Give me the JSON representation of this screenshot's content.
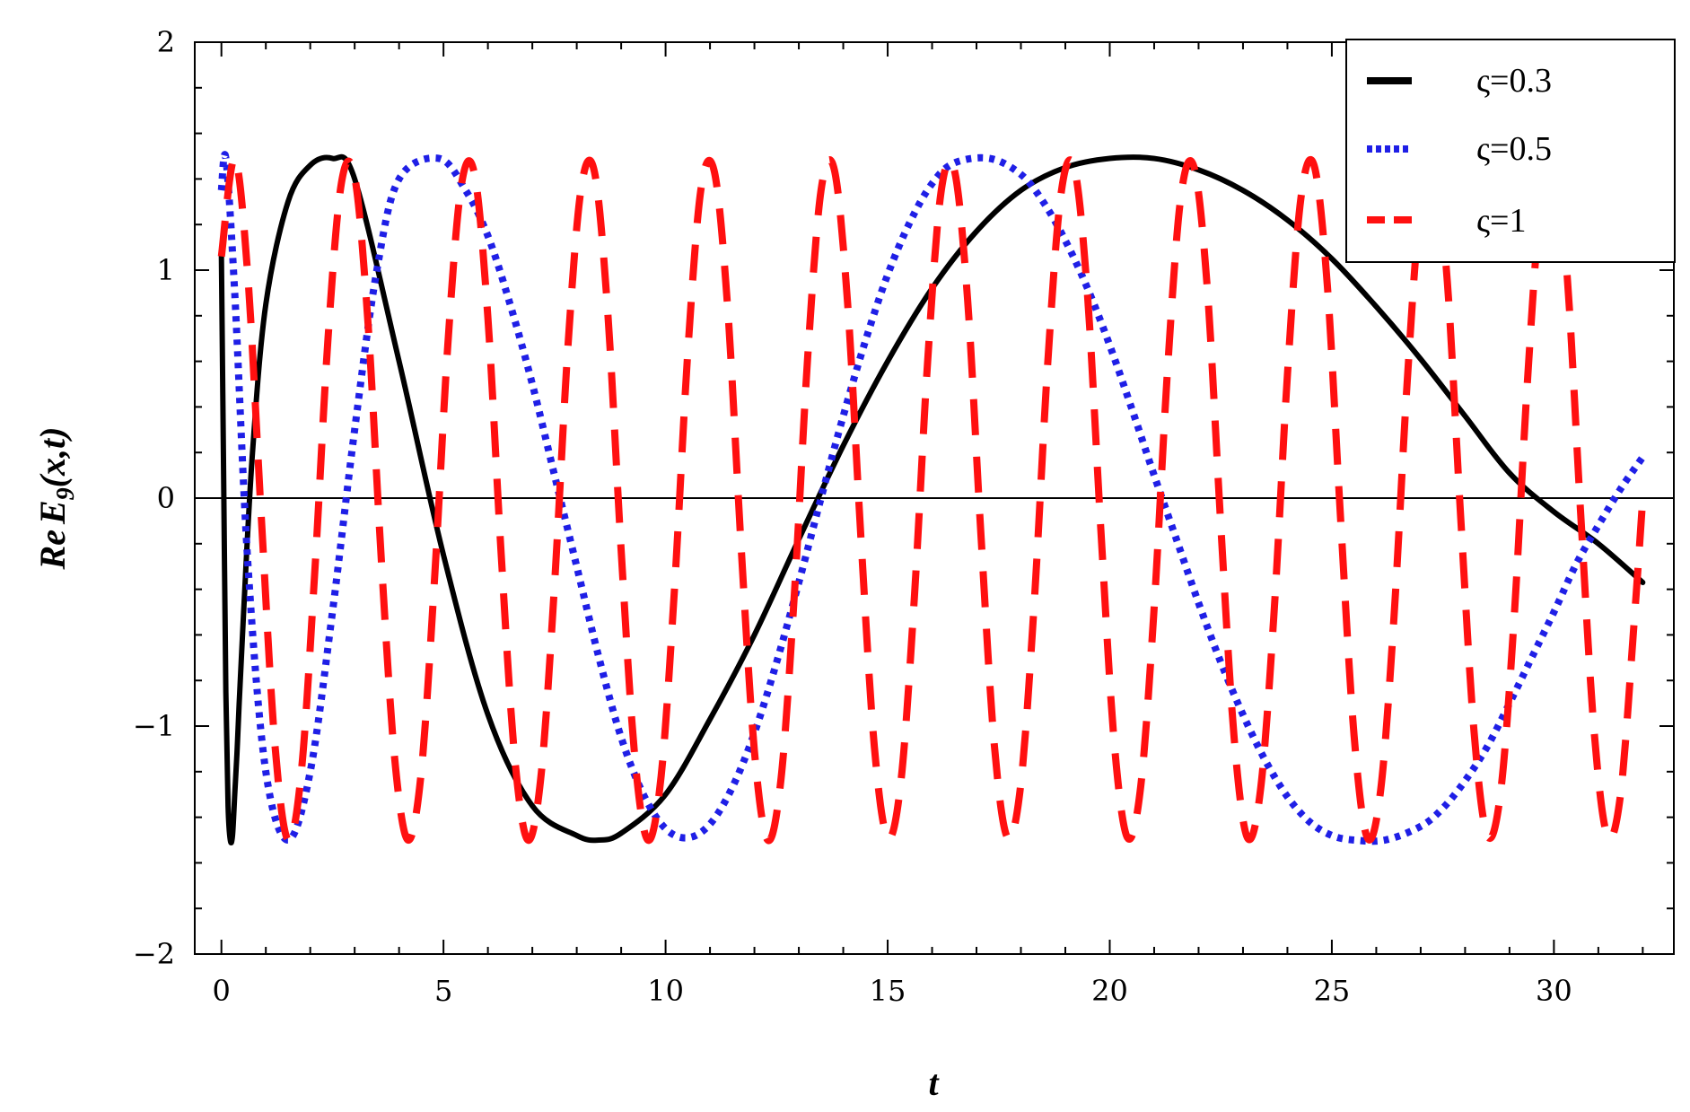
{
  "chart_data": {
    "type": "line",
    "title": "",
    "xlabel": "t",
    "ylabel_parts": {
      "re": "Re",
      "e": "E",
      "sub": "9",
      "args": "(x,t)"
    },
    "xlim": [
      -0.6,
      32.7
    ],
    "ylim": [
      -2,
      2
    ],
    "x_ticks": [
      0,
      5,
      10,
      15,
      20,
      25,
      30
    ],
    "y_ticks": [
      2,
      1,
      0,
      -1,
      -2
    ],
    "x_tick_labels": [
      "0",
      "5",
      "10",
      "15",
      "20",
      "25",
      "30"
    ],
    "y_tick_labels": [
      "2",
      "1",
      "0",
      "−1",
      "−2"
    ],
    "x_minor_step": 1,
    "y_minor_step": 0.2,
    "zero_line": true,
    "grid": false,
    "legend_position": "top-right",
    "series": [
      {
        "name": "ς=0.3",
        "color": "#000000",
        "style": "solid",
        "x": [
          0.0,
          0.05,
          0.1,
          0.15,
          0.2,
          0.25,
          0.3,
          0.35,
          0.4,
          0.5,
          0.7,
          1.0,
          1.5,
          2.0,
          2.5,
          3.0,
          4.0,
          5.0,
          6.0,
          7.0,
          8.0,
          8.5,
          9.0,
          10.0,
          11.0,
          12.0,
          13.0,
          14.0,
          15.0,
          16.0,
          17.0,
          18.0,
          19.0,
          20.0,
          21.0,
          22.0,
          23.0,
          24.0,
          25.0,
          26.0,
          27.0,
          28.0,
          29.0,
          30.0,
          31.0,
          32.0
        ],
        "y": [
          1.06,
          0.1,
          -0.85,
          -1.35,
          -1.5,
          -1.48,
          -1.3,
          -1.12,
          -0.9,
          -0.5,
          0.2,
          0.85,
          1.3,
          1.46,
          1.49,
          1.4,
          0.6,
          -0.25,
          -0.95,
          -1.35,
          -1.48,
          -1.5,
          -1.47,
          -1.3,
          -0.97,
          -0.6,
          -0.18,
          0.23,
          0.6,
          0.92,
          1.17,
          1.35,
          1.45,
          1.49,
          1.49,
          1.44,
          1.35,
          1.22,
          1.05,
          0.84,
          0.61,
          0.36,
          0.11,
          -0.06,
          -0.2,
          -0.37
        ]
      },
      {
        "name": "ς=0.5",
        "color": "#1f1fe6",
        "style": "dotted",
        "x": [
          0.0,
          0.1,
          0.3,
          0.6,
          1.0,
          1.5,
          2.0,
          2.5,
          3.0,
          3.5,
          4.0,
          4.9,
          5.5,
          6.0,
          6.5,
          7.0,
          7.5,
          8.0,
          8.5,
          9.0,
          9.5,
          10.0,
          10.5,
          11.0,
          11.5,
          12.0,
          12.5,
          13.0,
          13.5,
          14.0,
          14.5,
          15.0,
          15.5,
          16.0,
          16.5,
          17.3,
          18.0,
          18.5,
          19.0,
          19.5,
          20.0,
          20.5,
          21.0,
          21.5,
          22.0,
          22.5,
          23.0,
          23.5,
          24.0,
          24.5,
          25.0,
          25.5,
          26.2,
          27.0,
          27.5,
          28.0,
          28.5,
          29.0,
          29.5,
          30.0,
          30.5,
          31.0,
          31.5,
          32.0
        ],
        "y": [
          1.35,
          1.49,
          0.9,
          -0.3,
          -1.2,
          -1.5,
          -1.2,
          -0.5,
          0.3,
          1.0,
          1.4,
          1.49,
          1.35,
          1.15,
          0.85,
          0.5,
          0.1,
          -0.3,
          -0.7,
          -1.05,
          -1.3,
          -1.45,
          -1.49,
          -1.43,
          -1.27,
          -1.03,
          -0.72,
          -0.37,
          0.0,
          0.36,
          0.69,
          0.98,
          1.21,
          1.38,
          1.47,
          1.49,
          1.42,
          1.3,
          1.13,
          0.92,
          0.67,
          0.39,
          0.1,
          -0.18,
          -0.46,
          -0.72,
          -0.95,
          -1.15,
          -1.31,
          -1.42,
          -1.48,
          -1.5,
          -1.5,
          -1.44,
          -1.36,
          -1.24,
          -1.09,
          -0.9,
          -0.7,
          -0.5,
          -0.29,
          -0.12,
          0.04,
          0.18
        ]
      },
      {
        "name": "ς=1",
        "color": "#ff1010",
        "style": "dashed",
        "x": [
          0.0,
          0.3,
          0.6,
          0.9,
          1.2,
          1.5,
          1.8,
          2.1,
          2.4,
          2.7,
          3.0,
          3.3,
          3.6,
          3.9,
          4.2,
          4.5,
          4.8,
          5.1,
          5.4,
          5.7,
          6.0,
          6.3,
          6.6,
          6.9,
          7.2,
          7.5,
          7.8,
          8.1,
          8.4,
          8.7,
          9.0,
          9.3,
          9.6,
          9.9,
          10.2,
          10.5,
          10.8,
          11.1,
          11.4,
          11.7,
          12.0,
          12.3,
          12.6,
          12.9,
          13.2,
          13.5,
          13.8,
          14.1,
          14.4,
          14.7,
          15.0,
          15.3,
          15.6,
          15.9,
          16.2,
          16.5,
          16.8,
          17.1,
          17.4,
          17.7,
          18.0,
          18.3,
          18.6,
          18.9,
          19.2,
          19.5,
          19.8,
          20.1,
          20.4,
          20.7,
          21.0,
          21.3,
          21.6,
          21.9,
          22.2,
          22.5,
          22.8,
          23.1,
          23.4,
          23.7,
          24.0,
          24.3,
          24.6,
          24.9,
          25.2,
          25.5,
          25.8,
          26.1,
          26.4,
          26.7,
          27.0,
          27.3,
          27.6,
          27.9,
          28.2,
          28.5,
          28.8,
          29.1,
          29.4,
          29.7,
          30.0,
          30.3,
          30.6,
          30.9,
          31.2,
          31.5,
          31.8,
          32.0
        ],
        "y": [
          1.06,
          1.49,
          0.96,
          -0.09,
          -1.07,
          -1.5,
          -1.2,
          -0.33,
          0.7,
          1.38,
          1.41,
          0.77,
          -0.27,
          -1.14,
          -1.5,
          -1.2,
          -0.35,
          0.68,
          1.37,
          1.42,
          0.79,
          -0.25,
          -1.13,
          -1.5,
          -1.21,
          -0.38,
          0.66,
          1.36,
          1.43,
          0.81,
          -0.23,
          -1.12,
          -1.5,
          -1.22,
          -0.4,
          0.64,
          1.36,
          1.43,
          0.83,
          -0.21,
          -1.11,
          -1.5,
          -1.23,
          -0.42,
          0.62,
          1.35,
          1.44,
          0.85,
          -0.18,
          -1.09,
          -1.49,
          -1.24,
          -0.44,
          0.6,
          1.34,
          1.44,
          0.87,
          -0.16,
          -1.08,
          -1.49,
          -1.25,
          -0.46,
          0.58,
          1.33,
          1.45,
          0.89,
          -0.14,
          -1.07,
          -1.49,
          -1.26,
          -0.48,
          0.56,
          1.32,
          1.45,
          0.91,
          -0.12,
          -1.05,
          -1.49,
          -1.27,
          -0.5,
          0.54,
          1.31,
          1.46,
          0.93,
          -0.1,
          -1.04,
          -1.49,
          -1.28,
          -0.52,
          0.52,
          1.3,
          1.46,
          0.95,
          -0.08,
          -1.02,
          -1.48,
          -1.29,
          -0.54,
          0.5,
          1.29,
          1.47,
          0.97,
          -0.06,
          -1.01,
          -1.48,
          -1.3,
          -0.56,
          0.0
        ]
      }
    ]
  }
}
